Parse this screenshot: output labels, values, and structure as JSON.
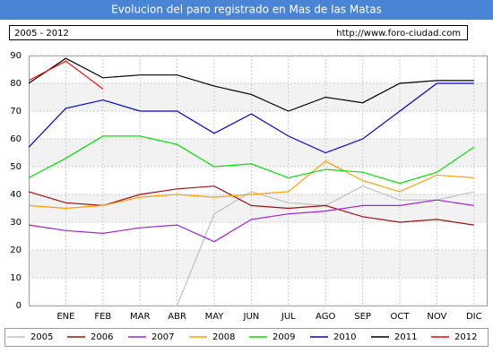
{
  "chart_data": {
    "type": "line",
    "title": "Evolucion del paro registrado en Mas de las Matas",
    "subtitle": "2005 - 2012",
    "source": "http://www.foro-ciudad.com",
    "categories": [
      null,
      "ENE",
      "FEB",
      "MAR",
      "ABR",
      "MAY",
      "JUN",
      "JUL",
      "AGO",
      "SEP",
      "OCT",
      "NOV",
      "DIC"
    ],
    "ylim": [
      0,
      90
    ],
    "yticks": [
      0,
      10,
      20,
      30,
      40,
      50,
      60,
      70,
      80,
      90
    ],
    "grid": true,
    "legend": "bottom",
    "series": [
      {
        "name": "2005",
        "color": "#c0c0c0",
        "values": [
          null,
          null,
          null,
          null,
          0,
          33,
          41,
          37,
          36,
          43,
          38,
          38,
          41
        ]
      },
      {
        "name": "2006",
        "color": "#a01010",
        "values": [
          41,
          37,
          36,
          40,
          42,
          43,
          36,
          35,
          36,
          32,
          30,
          31,
          29
        ]
      },
      {
        "name": "2007",
        "color": "#a020e0",
        "values": [
          29,
          27,
          26,
          28,
          29,
          23,
          31,
          33,
          34,
          36,
          36,
          38,
          36
        ]
      },
      {
        "name": "2008",
        "color": "#ffa000",
        "values": [
          36,
          35,
          36,
          39,
          40,
          39,
          40,
          41,
          52,
          45,
          41,
          47,
          46
        ]
      },
      {
        "name": "2009",
        "color": "#00e000",
        "values": [
          46,
          53,
          61,
          61,
          58,
          50,
          51,
          46,
          49,
          48,
          44,
          48,
          57
        ]
      },
      {
        "name": "2010",
        "color": "#0000e0",
        "values": [
          57,
          71,
          74,
          70,
          70,
          62,
          69,
          61,
          55,
          60,
          70,
          80,
          80
        ]
      },
      {
        "name": "2011",
        "color": "#000000",
        "values": [
          80,
          89,
          82,
          83,
          83,
          79,
          76,
          70,
          75,
          73,
          80,
          81,
          81
        ]
      },
      {
        "name": "2012",
        "color": "#ff0000",
        "values": [
          81,
          88,
          78,
          null,
          null,
          null,
          null,
          null,
          null,
          null,
          null,
          null,
          null
        ]
      }
    ]
  }
}
